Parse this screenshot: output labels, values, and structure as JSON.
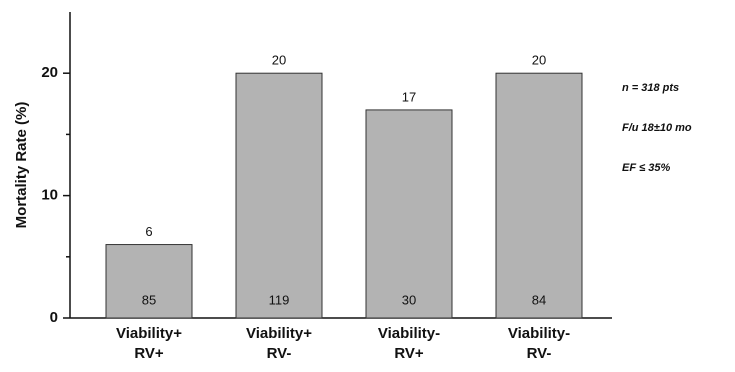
{
  "chart_data": {
    "type": "bar",
    "y_label": "Mortality Rate (%)",
    "categories": [
      [
        "Viability+",
        "RV+"
      ],
      [
        "Viability+",
        "RV-"
      ],
      [
        "Viability-",
        "RV+"
      ],
      [
        "Viability-",
        "RV-"
      ]
    ],
    "values": [
      6,
      20,
      17,
      20
    ],
    "bar_counts": [
      85,
      119,
      30,
      84
    ],
    "color": "#b3b3b3",
    "ylim": [
      0,
      25
    ],
    "yticks": [
      0,
      10,
      20
    ],
    "minor_yticks": [
      5,
      15
    ],
    "annotations": [
      "n = 318 pts",
      "F/u 18±10 mo",
      "EF ≤ 35%"
    ]
  }
}
